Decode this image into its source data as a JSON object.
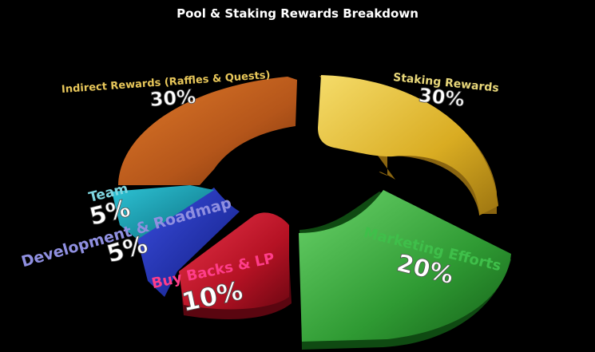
{
  "chart_data": {
    "type": "pie",
    "title": "Pool & Staking Rewards Breakdown",
    "slices": [
      {
        "label": "Staking Rewards",
        "value": 30,
        "value_label": "30%",
        "color": "#e8c23a",
        "label_color": "#e8d77a"
      },
      {
        "label": "Marketing Efforts",
        "value": 20,
        "value_label": "20%",
        "color": "#3fa83f",
        "label_color": "#3fbf4a"
      },
      {
        "label": "Buy Backs & LP",
        "value": 10,
        "value_label": "10%",
        "color": "#c0182a",
        "label_color": "#ff3d8a"
      },
      {
        "label": "Development & Roadmap",
        "value": 5,
        "value_label": "5%",
        "color": "#1c2fb8",
        "label_color": "#8f8fe0"
      },
      {
        "label": "Team",
        "value": 5,
        "value_label": "5%",
        "color": "#16a0b4",
        "label_color": "#7fd6e0"
      },
      {
        "label": "Indirect Rewards (Raffles & Quests)",
        "value": 30,
        "value_label": "30%",
        "color": "#c2621c",
        "label_color": "#e8c75a"
      }
    ]
  }
}
